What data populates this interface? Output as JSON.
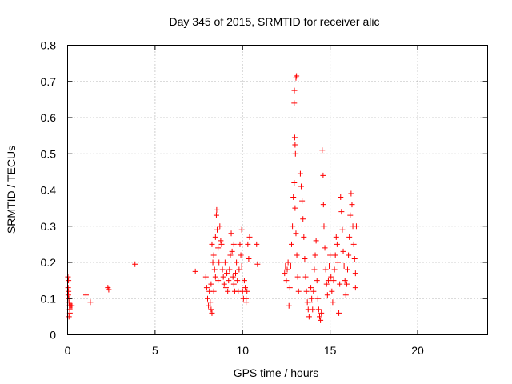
{
  "chart_data": {
    "type": "scatter",
    "title": "Day 345 of 2015, SRMTID for receiver alic",
    "xlabel": "GPS time / hours",
    "ylabel": "SRMTID / TECUs",
    "xlim": [
      0,
      24
    ],
    "ylim": [
      0,
      0.8
    ],
    "xticks": [
      0,
      5,
      10,
      15,
      20
    ],
    "xtick_labels": [
      "0",
      "5",
      "10",
      "15",
      "20"
    ],
    "yticks": [
      0,
      0.1,
      0.2,
      0.3,
      0.4,
      0.5,
      0.6,
      0.7,
      0.8
    ],
    "ytick_labels": [
      "0",
      "0.1",
      "0.2",
      "0.3",
      "0.4",
      "0.5",
      "0.6",
      "0.7",
      "0.8"
    ],
    "grid": true,
    "marker": "+",
    "color": "#ff0000",
    "series": [
      {
        "name": "SRMTID",
        "points": [
          [
            0.02,
            0.16
          ],
          [
            0.05,
            0.15
          ],
          [
            0.05,
            0.12
          ],
          [
            0.07,
            0.1
          ],
          [
            0.08,
            0.09
          ],
          [
            0.1,
            0.08
          ],
          [
            0.12,
            0.07
          ],
          [
            0.13,
            0.06
          ],
          [
            0.15,
            0.08
          ],
          [
            0.2,
            0.08
          ],
          [
            0.25,
            0.08
          ],
          [
            0.08,
            0.05
          ],
          [
            0.03,
            0.13
          ],
          [
            0.04,
            0.11
          ],
          [
            1.05,
            0.11
          ],
          [
            1.3,
            0.09
          ],
          [
            2.3,
            0.13
          ],
          [
            2.35,
            0.125
          ],
          [
            3.85,
            0.195
          ],
          [
            7.3,
            0.175
          ],
          [
            7.9,
            0.16
          ],
          [
            7.95,
            0.13
          ],
          [
            8.0,
            0.1
          ],
          [
            8.05,
            0.08
          ],
          [
            8.1,
            0.12
          ],
          [
            8.15,
            0.09
          ],
          [
            8.2,
            0.14
          ],
          [
            8.25,
            0.25
          ],
          [
            8.3,
            0.2
          ],
          [
            8.35,
            0.22
          ],
          [
            8.4,
            0.18
          ],
          [
            8.45,
            0.27
          ],
          [
            8.5,
            0.33
          ],
          [
            8.52,
            0.345
          ],
          [
            8.55,
            0.29
          ],
          [
            8.6,
            0.24
          ],
          [
            8.65,
            0.2
          ],
          [
            8.7,
            0.3
          ],
          [
            8.75,
            0.26
          ],
          [
            8.8,
            0.25
          ],
          [
            8.45,
            0.16
          ],
          [
            8.35,
            0.12
          ],
          [
            8.25,
            0.06
          ],
          [
            8.2,
            0.07
          ],
          [
            8.6,
            0.15
          ],
          [
            8.85,
            0.18
          ],
          [
            8.9,
            0.16
          ],
          [
            8.95,
            0.14
          ],
          [
            9.0,
            0.2
          ],
          [
            9.05,
            0.13
          ],
          [
            9.1,
            0.17
          ],
          [
            9.15,
            0.12
          ],
          [
            9.2,
            0.15
          ],
          [
            9.25,
            0.18
          ],
          [
            9.3,
            0.22
          ],
          [
            9.35,
            0.28
          ],
          [
            9.4,
            0.23
          ],
          [
            9.45,
            0.16
          ],
          [
            9.5,
            0.14
          ],
          [
            9.55,
            0.12
          ],
          [
            9.6,
            0.17
          ],
          [
            9.65,
            0.2
          ],
          [
            9.7,
            0.15
          ],
          [
            9.75,
            0.12
          ],
          [
            9.8,
            0.18
          ],
          [
            9.85,
            0.25
          ],
          [
            9.9,
            0.22
          ],
          [
            9.95,
            0.19
          ],
          [
            10.0,
            0.12
          ],
          [
            10.05,
            0.1
          ],
          [
            10.1,
            0.15
          ],
          [
            10.15,
            0.13
          ],
          [
            10.2,
            0.1
          ],
          [
            10.25,
            0.12
          ],
          [
            10.3,
            0.25
          ],
          [
            10.35,
            0.21
          ],
          [
            10.4,
            0.27
          ],
          [
            10.2,
            0.09
          ],
          [
            9.95,
            0.29
          ],
          [
            9.5,
            0.25
          ],
          [
            10.8,
            0.25
          ],
          [
            10.85,
            0.195
          ],
          [
            12.4,
            0.17
          ],
          [
            12.45,
            0.19
          ],
          [
            12.5,
            0.15
          ],
          [
            12.55,
            0.18
          ],
          [
            12.6,
            0.2
          ],
          [
            12.65,
            0.08
          ],
          [
            12.7,
            0.13
          ],
          [
            12.75,
            0.19
          ],
          [
            12.8,
            0.25
          ],
          [
            12.85,
            0.3
          ],
          [
            12.9,
            0.38
          ],
          [
            12.95,
            0.42
          ],
          [
            13.0,
            0.35
          ],
          [
            13.05,
            0.28
          ],
          [
            13.1,
            0.22
          ],
          [
            13.15,
            0.16
          ],
          [
            13.2,
            0.12
          ],
          [
            12.98,
            0.545
          ],
          [
            13.0,
            0.525
          ],
          [
            13.02,
            0.5
          ],
          [
            12.95,
            0.64
          ],
          [
            12.96,
            0.675
          ],
          [
            13.05,
            0.71
          ],
          [
            13.08,
            0.715
          ],
          [
            13.3,
            0.445
          ],
          [
            13.35,
            0.41
          ],
          [
            13.4,
            0.37
          ],
          [
            13.45,
            0.32
          ],
          [
            13.5,
            0.27
          ],
          [
            13.55,
            0.21
          ],
          [
            13.6,
            0.16
          ],
          [
            13.65,
            0.12
          ],
          [
            13.7,
            0.09
          ],
          [
            13.75,
            0.07
          ],
          [
            13.8,
            0.05
          ],
          [
            13.85,
            0.09
          ],
          [
            13.9,
            0.13
          ],
          [
            13.95,
            0.1
          ],
          [
            14.0,
            0.07
          ],
          [
            14.05,
            0.12
          ],
          [
            14.1,
            0.18
          ],
          [
            14.15,
            0.22
          ],
          [
            14.2,
            0.26
          ],
          [
            14.25,
            0.15
          ],
          [
            14.3,
            0.1
          ],
          [
            14.35,
            0.07
          ],
          [
            14.4,
            0.05
          ],
          [
            14.45,
            0.04
          ],
          [
            14.5,
            0.06
          ],
          [
            14.55,
            0.51
          ],
          [
            14.6,
            0.44
          ],
          [
            14.62,
            0.36
          ],
          [
            14.65,
            0.3
          ],
          [
            14.7,
            0.24
          ],
          [
            14.75,
            0.18
          ],
          [
            14.8,
            0.14
          ],
          [
            14.85,
            0.11
          ],
          [
            14.9,
            0.15
          ],
          [
            14.95,
            0.19
          ],
          [
            15.0,
            0.22
          ],
          [
            15.05,
            0.16
          ],
          [
            15.1,
            0.12
          ],
          [
            15.15,
            0.09
          ],
          [
            15.2,
            0.15
          ],
          [
            15.25,
            0.18
          ],
          [
            15.3,
            0.22
          ],
          [
            15.35,
            0.27
          ],
          [
            15.4,
            0.25
          ],
          [
            15.45,
            0.2
          ],
          [
            15.5,
            0.06
          ],
          [
            15.55,
            0.14
          ],
          [
            15.6,
            0.38
          ],
          [
            15.65,
            0.34
          ],
          [
            15.7,
            0.29
          ],
          [
            15.75,
            0.23
          ],
          [
            15.8,
            0.19
          ],
          [
            15.85,
            0.15
          ],
          [
            15.9,
            0.11
          ],
          [
            15.95,
            0.14
          ],
          [
            16.0,
            0.18
          ],
          [
            16.05,
            0.22
          ],
          [
            16.1,
            0.27
          ],
          [
            16.15,
            0.33
          ],
          [
            16.2,
            0.39
          ],
          [
            16.25,
            0.36
          ],
          [
            16.3,
            0.3
          ],
          [
            16.35,
            0.25
          ],
          [
            16.4,
            0.21
          ],
          [
            16.45,
            0.17
          ],
          [
            16.5,
            0.3
          ],
          [
            16.45,
            0.13
          ]
        ]
      }
    ]
  }
}
